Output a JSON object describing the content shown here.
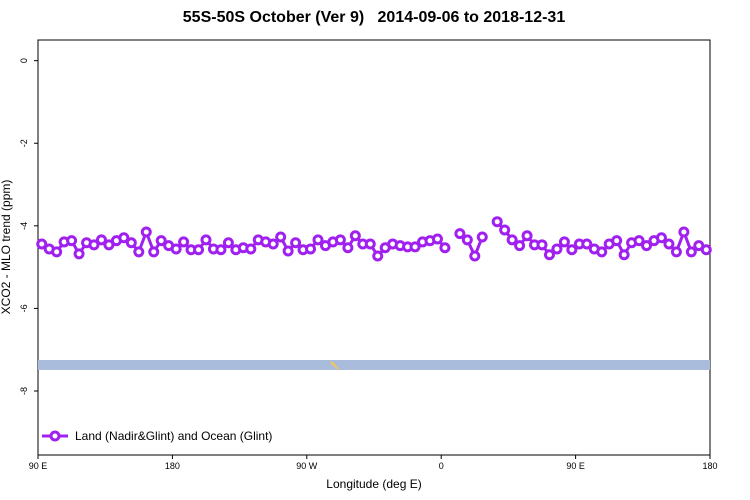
{
  "chart_data": {
    "type": "line",
    "title": "55S-50S October (Ver 9)   2014-09-06 to 2018-12-31",
    "x_label": "Longitude (deg E)",
    "y_label": "XCO2 - MLO trend (ppm)",
    "xlim": [
      90,
      540
    ],
    "ylim": [
      -9.55,
      0.5
    ],
    "xticks": [
      {
        "value": 90,
        "label": "90 E"
      },
      180,
      {
        "value": 270,
        "label": "90 W"
      },
      {
        "value": 360,
        "label": "0"
      },
      {
        "value": 450,
        "label": "90 E"
      },
      {
        "value": 540,
        "label": "180"
      }
    ],
    "yticks": [
      0,
      -2,
      -4,
      -6,
      -8
    ],
    "legend_position": "bottom-left",
    "x": [
      92.5,
      97.5,
      102.5,
      107.5,
      112.5,
      117.5,
      122.5,
      127.5,
      132.5,
      137.5,
      142.5,
      147.5,
      152.5,
      157.5,
      162.5,
      167.5,
      172.5,
      177.5,
      182.5,
      187.5,
      192.5,
      197.5,
      202.5,
      207.5,
      212.5,
      217.5,
      222.5,
      227.5,
      232.5,
      237.5,
      242.5,
      247.5,
      252.5,
      257.5,
      262.5,
      267.5,
      272.5,
      277.5,
      282.5,
      287.5,
      292.5,
      297.5,
      302.5,
      307.5,
      312.5,
      317.5,
      322.5,
      327.5,
      332.5,
      337.5,
      342.5,
      347.5,
      352.5,
      357.5,
      362.5,
      367.5,
      372.5,
      377.5,
      382.5,
      387.5,
      392.5,
      397.5,
      402.5,
      407.5,
      412.5,
      417.5,
      422.5,
      427.5,
      432.5,
      437.5,
      442.5,
      447.5,
      452.5,
      457.5,
      462.5,
      467.5,
      472.5,
      477.5,
      482.5,
      487.5,
      492.5,
      497.5,
      502.5,
      507.5,
      512.5,
      517.5,
      522.5,
      527.5,
      532.5,
      537.5
    ],
    "series": [
      {
        "name": "Land (Nadir&Glint) and Ocean (Glint)",
        "color": "#a020f0",
        "values": [
          -4.44,
          -4.56,
          -4.63,
          -4.39,
          -4.36,
          -4.68,
          -4.41,
          -4.46,
          -4.34,
          -4.46,
          -4.36,
          -4.29,
          -4.41,
          -4.63,
          -4.15,
          -4.63,
          -4.36,
          -4.48,
          -4.56,
          -4.39,
          -4.58,
          -4.58,
          -4.34,
          -4.56,
          -4.58,
          -4.41,
          -4.58,
          -4.53,
          -4.56,
          -4.34,
          -4.39,
          -4.44,
          -4.27,
          -4.61,
          -4.41,
          -4.58,
          -4.56,
          -4.34,
          -4.48,
          -4.39,
          -4.34,
          -4.53,
          -4.24,
          -4.44,
          -4.44,
          -4.73,
          -4.53,
          -4.44,
          -4.48,
          -4.51,
          -4.51,
          -4.39,
          -4.36,
          -4.32,
          -4.53,
          null,
          -4.19,
          -4.34,
          -4.73,
          -4.27,
          null,
          -3.9,
          -4.1,
          -4.34,
          -4.48,
          -4.24,
          -4.46,
          -4.46,
          -4.7,
          -4.56,
          -4.39,
          -4.58,
          -4.44,
          -4.44,
          -4.56,
          -4.63,
          -4.44,
          -4.36,
          -4.7,
          -4.41,
          -4.36,
          -4.48,
          -4.36,
          -4.29,
          -4.44,
          -4.63,
          -4.15,
          -4.63,
          -4.48,
          -4.58
        ]
      }
    ]
  }
}
